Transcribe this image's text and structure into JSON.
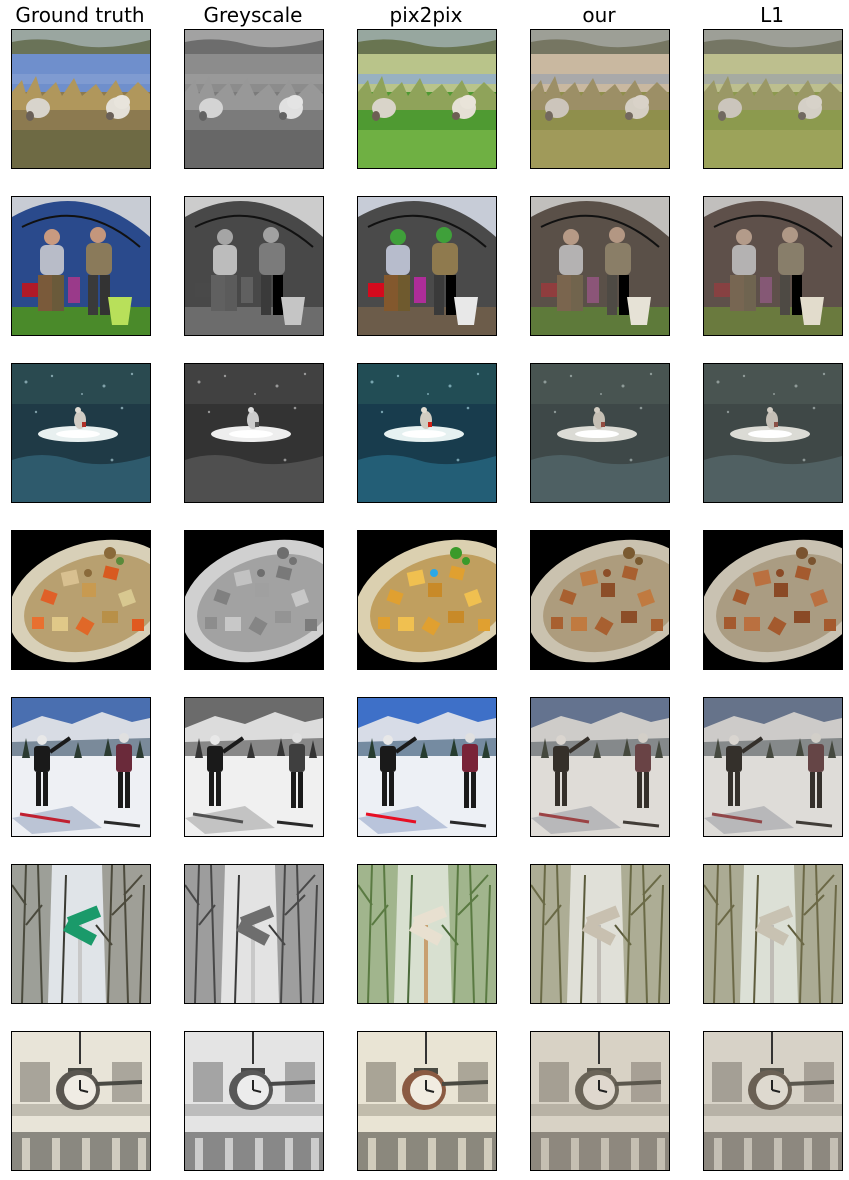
{
  "columns": [
    {
      "label": "Ground truth",
      "mode": "gt"
    },
    {
      "label": "Greyscale",
      "mode": "grey"
    },
    {
      "label": "pix2pix",
      "mode": "p2p"
    },
    {
      "label": "our",
      "mode": "our"
    },
    {
      "label": "L1",
      "mode": "l1"
    }
  ],
  "rows": [
    {
      "scene": "sheep-by-lake"
    },
    {
      "scene": "people-under-umbrella"
    },
    {
      "scene": "bird-splashing-water"
    },
    {
      "scene": "plate-of-roasted-vegetables"
    },
    {
      "scene": "skiers-on-mountain"
    },
    {
      "scene": "street-signs-in-trees"
    },
    {
      "scene": "clock-on-building"
    }
  ]
}
